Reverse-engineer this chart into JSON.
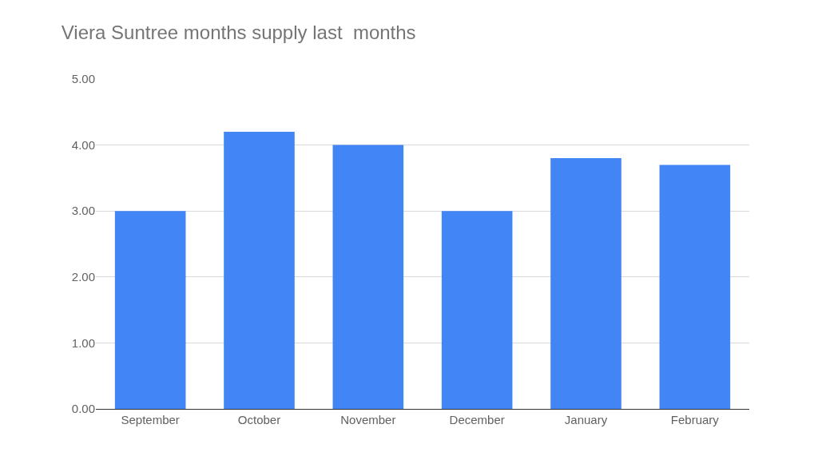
{
  "chart_data": {
    "type": "bar",
    "title": "Viera Suntree months supply last  months",
    "categories": [
      "September",
      "October",
      "November",
      "December",
      "January",
      "February"
    ],
    "values": [
      3.0,
      4.2,
      4.0,
      3.0,
      3.8,
      3.7
    ],
    "color": "#4285f4",
    "ylim": [
      0,
      5
    ],
    "yticks": [
      {
        "value": 0,
        "label": "0.00"
      },
      {
        "value": 1,
        "label": "1.00"
      },
      {
        "value": 2,
        "label": "2.00"
      },
      {
        "value": 3,
        "label": "3.00"
      },
      {
        "value": 4,
        "label": "4.00"
      },
      {
        "value": 5,
        "label": "5.00"
      }
    ],
    "grid": "y"
  }
}
